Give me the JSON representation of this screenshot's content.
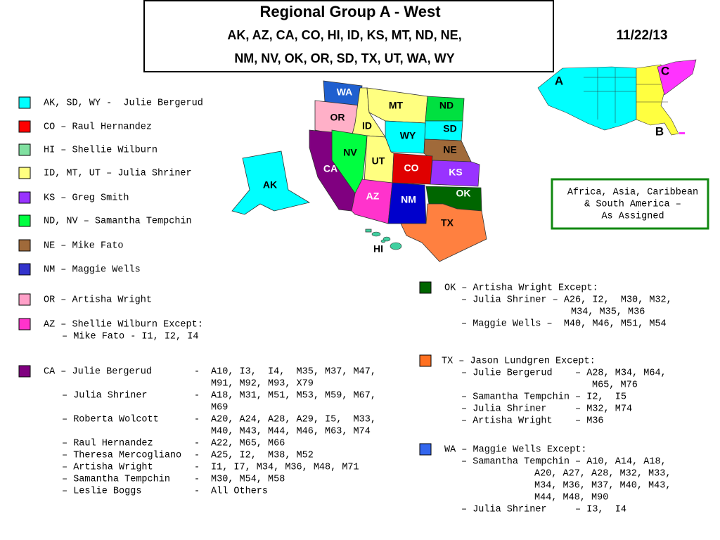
{
  "header": {
    "title": "Regional Group A - West",
    "states": [
      "AK,  AZ,  CA,  CO,  HI,  ID,  KS,  MT,  ND,  NE,",
      "NM,  NV,  OK,  OR,  SD,  TX,  UT,  WA,  WY"
    ],
    "date": "11/22/13"
  },
  "map": {
    "states": [
      {
        "label": "WA",
        "color": "#1f5fcf"
      },
      {
        "label": "OR",
        "color": "#ffb0c8"
      },
      {
        "label": "ID",
        "color": "#ffff80"
      },
      {
        "label": "MT",
        "color": "#ffff80"
      },
      {
        "label": "ND",
        "color": "#00e040"
      },
      {
        "label": "SD",
        "color": "#00ffff"
      },
      {
        "label": "WY",
        "color": "#00ffff"
      },
      {
        "label": "NE",
        "color": "#a06a3a"
      },
      {
        "label": "NV",
        "color": "#00ff40"
      },
      {
        "label": "UT",
        "color": "#ffff80"
      },
      {
        "label": "CO",
        "color": "#e00000"
      },
      {
        "label": "KS",
        "color": "#9933ff"
      },
      {
        "label": "CA",
        "color": "#800080"
      },
      {
        "label": "AZ",
        "color": "#ff33cc"
      },
      {
        "label": "NM",
        "color": "#0000cc"
      },
      {
        "label": "OK",
        "color": "#006600"
      },
      {
        "label": "TX",
        "color": "#ff8040"
      },
      {
        "label": "AK",
        "color": "#00ffff"
      },
      {
        "label": "HI",
        "color": "#40d0a0"
      }
    ]
  },
  "inset": {
    "labels": [
      "A",
      "B",
      "C"
    ]
  },
  "note": {
    "lines": [
      "Africa, Asia, Caribbean",
      "& South America –",
      "As Assigned"
    ]
  },
  "legend": [
    {
      "color": "#00ffff",
      "lines": [
        "AK, SD, WY -  Julie Bergerud"
      ]
    },
    {
      "color": "#ff0000",
      "lines": [
        "CO – Raul Hernandez"
      ]
    },
    {
      "color": "#80e0a0",
      "lines": [
        "HI – Shellie Wilburn"
      ]
    },
    {
      "color": "#ffff80",
      "lines": [
        "ID, MT, UT – Julia Shriner"
      ]
    },
    {
      "color": "#9933ff",
      "lines": [
        "KS – Greg Smith"
      ]
    },
    {
      "color": "#00ff40",
      "lines": [
        "ND, NV – Samantha Tempchin"
      ]
    },
    {
      "color": "#a06a3a",
      "lines": [
        "NE – Mike Fato"
      ]
    },
    {
      "color": "#3333cc",
      "lines": [
        "NM – Maggie Wells"
      ]
    },
    {
      "color": "#ffa0c8",
      "lines": [
        "OR – Artisha Wright"
      ]
    },
    {
      "color": "#ff33cc",
      "lines": [
        "AZ – Shellie Wilburn Except:",
        "– Mike Fato - I1, I2, I4"
      ]
    }
  ],
  "ca": {
    "color": "#800080",
    "rows": [
      {
        "name": "CA – Julie Bergerud",
        "dash": "-",
        "codes": [
          "A10, I3,  I4,  M35, M37, M47,",
          "M91, M92, M93, X79"
        ]
      },
      {
        "name": "– Julia Shriner",
        "dash": "-",
        "codes": [
          "A18, M31, M51, M53, M59, M67,",
          "M69"
        ]
      },
      {
        "name": "– Roberta Wolcott",
        "dash": "-",
        "codes": [
          "A20, A24, A28, A29, I5,  M33,",
          "M40, M43, M44, M46, M63, M74"
        ]
      },
      {
        "name": "– Raul Hernandez",
        "dash": "-",
        "codes": [
          "A22, M65, M66"
        ]
      },
      {
        "name": "– Theresa Mercogliano",
        "dash": "-",
        "codes": [
          "A25, I2,  M38, M52"
        ]
      },
      {
        "name": "– Artisha Wright",
        "dash": "-",
        "codes": [
          "I1, I7, M34, M36, M48, M71"
        ]
      },
      {
        "name": "– Samantha Tempchin",
        "dash": "-",
        "codes": [
          "M30, M54, M58"
        ]
      },
      {
        "name": "– Leslie Boggs",
        "dash": "-",
        "codes": [
          "All Others"
        ]
      }
    ]
  },
  "exceptions": [
    {
      "color": "#006600",
      "head": "OK – Artisha Wright Except:",
      "rows": [
        [
          "– Julia Shriner – A26, I2,  M30, M32,",
          "M34, M35, M36"
        ],
        [
          "– Maggie Wells –  M40, M46, M51, M54"
        ]
      ]
    },
    {
      "color": "#ff7020",
      "head": "TX – Jason Lundgren Except:",
      "rows": [
        [
          "– Julie Bergerud    – A28, M34, M64,",
          "M65, M76"
        ],
        [
          "– Samantha Tempchin – I2,  I5"
        ],
        [
          "– Julia Shriner     – M32, M74"
        ],
        [
          "– Artisha Wright    – M36"
        ]
      ]
    },
    {
      "color": "#3366ee",
      "head": "WA – Maggie Wells Except:",
      "rows": [
        [
          "– Samantha Tempchin – A10, A14, A18,",
          "A20, A27, A28, M32, M33,",
          "M34, M36, M37, M40, M43,",
          "M44, M48, M90"
        ],
        [
          "– Julia Shriner     – I3,  I4"
        ]
      ]
    }
  ]
}
